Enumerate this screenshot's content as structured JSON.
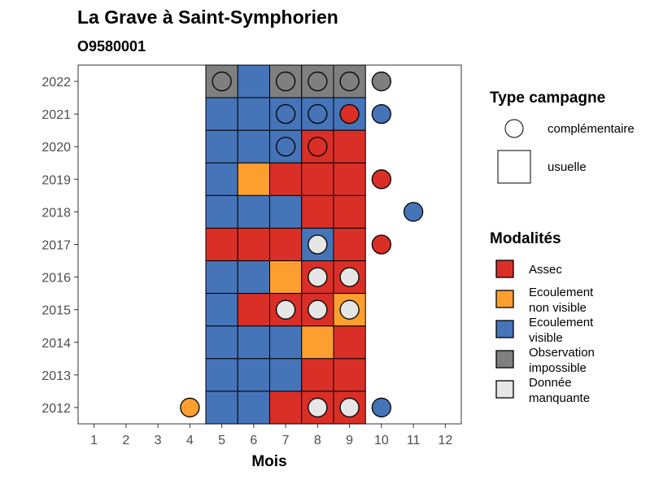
{
  "chart_data": {
    "type": "heatmap",
    "title": "La Grave à Saint-Symphorien",
    "subtitle": "O9580001",
    "xlabel": "Mois",
    "ylabel": "",
    "x_ticks": [
      "1",
      "2",
      "3",
      "4",
      "5",
      "6",
      "7",
      "8",
      "9",
      "10",
      "11",
      "12"
    ],
    "y_ticks": [
      "2012",
      "2013",
      "2014",
      "2015",
      "2016",
      "2017",
      "2018",
      "2019",
      "2020",
      "2021",
      "2022"
    ],
    "xlim": [
      0.5,
      12.5
    ],
    "ylim": [
      2011.5,
      2022.5
    ],
    "grid": false,
    "legend_position": "right",
    "colors": {
      "Assec": "#d92f26",
      "Ecoulement non visible": "#fc9f2f",
      "Ecoulement visible": "#4574b8",
      "Observation impossible": "#7f7f7f",
      "Donnée manquante": "#e6e6e6"
    },
    "legend_type": {
      "title": "Type campagne",
      "items": [
        {
          "label": "complémentaire",
          "shape": "circle"
        },
        {
          "label": "usuelle",
          "shape": "square"
        }
      ]
    },
    "legend_modalites": {
      "title": "Modalités",
      "items": [
        {
          "key": "Assec",
          "lines": [
            "Assec"
          ]
        },
        {
          "key": "Ecoulement non visible",
          "lines": [
            "Ecoulement",
            "non visible"
          ]
        },
        {
          "key": "Ecoulement visible",
          "lines": [
            "Ecoulement",
            "visible"
          ]
        },
        {
          "key": "Observation impossible",
          "lines": [
            "Observation",
            "impossible"
          ]
        },
        {
          "key": "Donnée manquante",
          "lines": [
            "Donnée",
            "manquante"
          ]
        }
      ]
    },
    "tiles": [
      {
        "year": 2022,
        "month": 5,
        "value": "Observation impossible"
      },
      {
        "year": 2022,
        "month": 6,
        "value": "Ecoulement visible"
      },
      {
        "year": 2022,
        "month": 7,
        "value": "Observation impossible"
      },
      {
        "year": 2022,
        "month": 8,
        "value": "Observation impossible"
      },
      {
        "year": 2022,
        "month": 9,
        "value": "Observation impossible"
      },
      {
        "year": 2021,
        "month": 5,
        "value": "Ecoulement visible"
      },
      {
        "year": 2021,
        "month": 6,
        "value": "Ecoulement visible"
      },
      {
        "year": 2021,
        "month": 7,
        "value": "Ecoulement visible"
      },
      {
        "year": 2021,
        "month": 8,
        "value": "Ecoulement visible"
      },
      {
        "year": 2021,
        "month": 9,
        "value": "Ecoulement visible"
      },
      {
        "year": 2020,
        "month": 5,
        "value": "Ecoulement visible"
      },
      {
        "year": 2020,
        "month": 6,
        "value": "Ecoulement visible"
      },
      {
        "year": 2020,
        "month": 7,
        "value": "Ecoulement visible"
      },
      {
        "year": 2020,
        "month": 8,
        "value": "Assec"
      },
      {
        "year": 2020,
        "month": 9,
        "value": "Assec"
      },
      {
        "year": 2019,
        "month": 5,
        "value": "Ecoulement visible"
      },
      {
        "year": 2019,
        "month": 6,
        "value": "Ecoulement non visible"
      },
      {
        "year": 2019,
        "month": 7,
        "value": "Assec"
      },
      {
        "year": 2019,
        "month": 8,
        "value": "Assec"
      },
      {
        "year": 2019,
        "month": 9,
        "value": "Assec"
      },
      {
        "year": 2018,
        "month": 5,
        "value": "Ecoulement visible"
      },
      {
        "year": 2018,
        "month": 6,
        "value": "Ecoulement visible"
      },
      {
        "year": 2018,
        "month": 7,
        "value": "Ecoulement visible"
      },
      {
        "year": 2018,
        "month": 8,
        "value": "Assec"
      },
      {
        "year": 2018,
        "month": 9,
        "value": "Assec"
      },
      {
        "year": 2017,
        "month": 5,
        "value": "Assec"
      },
      {
        "year": 2017,
        "month": 6,
        "value": "Assec"
      },
      {
        "year": 2017,
        "month": 7,
        "value": "Assec"
      },
      {
        "year": 2017,
        "month": 8,
        "value": "Ecoulement visible"
      },
      {
        "year": 2017,
        "month": 9,
        "value": "Assec"
      },
      {
        "year": 2016,
        "month": 5,
        "value": "Ecoulement visible"
      },
      {
        "year": 2016,
        "month": 6,
        "value": "Ecoulement visible"
      },
      {
        "year": 2016,
        "month": 7,
        "value": "Ecoulement non visible"
      },
      {
        "year": 2016,
        "month": 8,
        "value": "Assec"
      },
      {
        "year": 2016,
        "month": 9,
        "value": "Assec"
      },
      {
        "year": 2015,
        "month": 5,
        "value": "Ecoulement visible"
      },
      {
        "year": 2015,
        "month": 6,
        "value": "Assec"
      },
      {
        "year": 2015,
        "month": 7,
        "value": "Assec"
      },
      {
        "year": 2015,
        "month": 8,
        "value": "Assec"
      },
      {
        "year": 2015,
        "month": 9,
        "value": "Ecoulement non visible"
      },
      {
        "year": 2014,
        "month": 5,
        "value": "Ecoulement visible"
      },
      {
        "year": 2014,
        "month": 6,
        "value": "Ecoulement visible"
      },
      {
        "year": 2014,
        "month": 7,
        "value": "Ecoulement visible"
      },
      {
        "year": 2014,
        "month": 8,
        "value": "Ecoulement non visible"
      },
      {
        "year": 2014,
        "month": 9,
        "value": "Assec"
      },
      {
        "year": 2013,
        "month": 5,
        "value": "Ecoulement visible"
      },
      {
        "year": 2013,
        "month": 6,
        "value": "Ecoulement visible"
      },
      {
        "year": 2013,
        "month": 7,
        "value": "Ecoulement visible"
      },
      {
        "year": 2013,
        "month": 8,
        "value": "Assec"
      },
      {
        "year": 2013,
        "month": 9,
        "value": "Assec"
      },
      {
        "year": 2012,
        "month": 5,
        "value": "Ecoulement visible"
      },
      {
        "year": 2012,
        "month": 6,
        "value": "Ecoulement visible"
      },
      {
        "year": 2012,
        "month": 7,
        "value": "Assec"
      },
      {
        "year": 2012,
        "month": 8,
        "value": "Assec"
      },
      {
        "year": 2012,
        "month": 9,
        "value": "Assec"
      }
    ],
    "points": [
      {
        "year": 2022,
        "month": 5,
        "value": "Observation impossible"
      },
      {
        "year": 2022,
        "month": 7,
        "value": "Observation impossible"
      },
      {
        "year": 2022,
        "month": 8,
        "value": "Observation impossible"
      },
      {
        "year": 2022,
        "month": 9,
        "value": "Observation impossible"
      },
      {
        "year": 2022,
        "month": 10,
        "value": "Observation impossible"
      },
      {
        "year": 2021,
        "month": 7,
        "value": "Ecoulement visible"
      },
      {
        "year": 2021,
        "month": 8,
        "value": "Ecoulement visible"
      },
      {
        "year": 2021,
        "month": 9,
        "value": "Assec"
      },
      {
        "year": 2021,
        "month": 10,
        "value": "Ecoulement visible"
      },
      {
        "year": 2020,
        "month": 7,
        "value": "Ecoulement visible"
      },
      {
        "year": 2020,
        "month": 8,
        "value": "Assec"
      },
      {
        "year": 2019,
        "month": 10,
        "value": "Assec"
      },
      {
        "year": 2018,
        "month": 11,
        "value": "Ecoulement visible"
      },
      {
        "year": 2017,
        "month": 8,
        "value": "Donnée manquante"
      },
      {
        "year": 2017,
        "month": 10,
        "value": "Assec"
      },
      {
        "year": 2016,
        "month": 8,
        "value": "Donnée manquante"
      },
      {
        "year": 2016,
        "month": 9,
        "value": "Donnée manquante"
      },
      {
        "year": 2015,
        "month": 7,
        "value": "Donnée manquante"
      },
      {
        "year": 2015,
        "month": 8,
        "value": "Donnée manquante"
      },
      {
        "year": 2015,
        "month": 9,
        "value": "Donnée manquante"
      },
      {
        "year": 2012,
        "month": 4,
        "value": "Ecoulement non visible"
      },
      {
        "year": 2012,
        "month": 8,
        "value": "Donnée manquante"
      },
      {
        "year": 2012,
        "month": 9,
        "value": "Donnée manquante"
      },
      {
        "year": 2012,
        "month": 10,
        "value": "Ecoulement visible"
      }
    ]
  }
}
